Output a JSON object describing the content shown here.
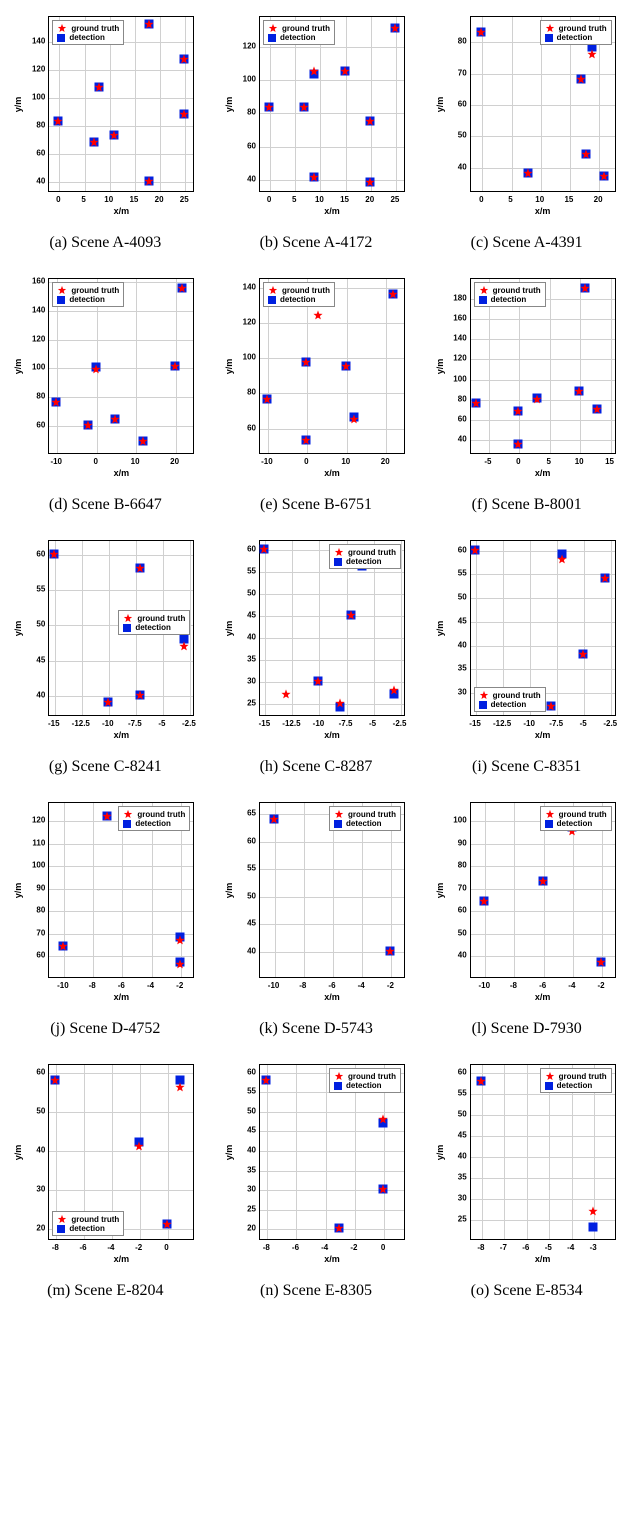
{
  "legend": {
    "ground_truth": "ground truth",
    "detection": "detection",
    "gt_color": "#ff0000",
    "det_color": "#0020e0"
  },
  "axis_labels": {
    "x": "x/m",
    "y": "y/m"
  },
  "chart_style": {
    "grid_color": "#d0d0d0",
    "border_color": "#000000",
    "tick_fontsize": 8,
    "label_fontsize": 9
  },
  "charts": [
    {
      "id": "a",
      "caption": "(a) Scene A-4093",
      "xlim": [
        -2,
        27
      ],
      "ylim": [
        32,
        158
      ],
      "xticks": [
        0,
        5,
        10,
        15,
        20,
        25
      ],
      "yticks": [
        40,
        60,
        80,
        100,
        120,
        140
      ],
      "legend_pos": "top-left",
      "gt": [
        [
          0,
          83
        ],
        [
          7,
          68
        ],
        [
          8,
          107
        ],
        [
          11,
          73
        ],
        [
          18,
          40
        ],
        [
          25,
          88
        ],
        [
          25,
          127
        ],
        [
          18,
          152
        ]
      ],
      "det": [
        [
          0,
          83
        ],
        [
          7,
          68
        ],
        [
          8,
          107
        ],
        [
          11,
          73
        ],
        [
          18,
          40
        ],
        [
          25,
          88
        ],
        [
          25,
          127
        ],
        [
          18,
          152
        ]
      ]
    },
    {
      "id": "b",
      "caption": "(b) Scene A-4172",
      "xlim": [
        -2,
        27
      ],
      "ylim": [
        32,
        138
      ],
      "xticks": [
        0,
        5,
        10,
        15,
        20,
        25
      ],
      "yticks": [
        40,
        60,
        80,
        100,
        120
      ],
      "legend_pos": "top-left",
      "gt": [
        [
          0,
          83
        ],
        [
          7,
          83
        ],
        [
          9,
          41
        ],
        [
          9,
          105
        ],
        [
          15,
          105
        ],
        [
          20,
          38
        ],
        [
          20,
          75
        ],
        [
          25,
          131
        ]
      ],
      "det": [
        [
          0,
          83
        ],
        [
          7,
          83
        ],
        [
          9,
          41
        ],
        [
          9,
          103
        ],
        [
          15,
          105
        ],
        [
          20,
          38
        ],
        [
          20,
          75
        ],
        [
          25,
          131
        ]
      ]
    },
    {
      "id": "c",
      "caption": "(c) Scene A-4391",
      "xlim": [
        -2,
        23
      ],
      "ylim": [
        32,
        88
      ],
      "xticks": [
        0,
        5,
        10,
        15,
        20
      ],
      "yticks": [
        40,
        50,
        60,
        70,
        80
      ],
      "legend_pos": "top-right",
      "gt": [
        [
          0,
          83
        ],
        [
          8,
          38
        ],
        [
          17,
          68
        ],
        [
          18,
          44
        ],
        [
          19,
          76
        ],
        [
          21,
          37
        ]
      ],
      "det": [
        [
          0,
          83
        ],
        [
          8,
          38
        ],
        [
          17,
          68
        ],
        [
          18,
          44
        ],
        [
          19,
          78
        ],
        [
          21,
          37
        ]
      ]
    },
    {
      "id": "d",
      "caption": "(d) Scene B-6647",
      "xlim": [
        -12,
        25
      ],
      "ylim": [
        40,
        162
      ],
      "xticks": [
        -10,
        0,
        10,
        20
      ],
      "yticks": [
        60,
        80,
        100,
        120,
        140,
        160
      ],
      "legend_pos": "top-left",
      "gt": [
        [
          -10,
          76
        ],
        [
          -2,
          60
        ],
        [
          0,
          99
        ],
        [
          5,
          64
        ],
        [
          12,
          49
        ],
        [
          20,
          101
        ],
        [
          22,
          155
        ]
      ],
      "det": [
        [
          -10,
          76
        ],
        [
          -2,
          60
        ],
        [
          0,
          100
        ],
        [
          5,
          64
        ],
        [
          12,
          49
        ],
        [
          20,
          101
        ],
        [
          22,
          155
        ]
      ]
    },
    {
      "id": "e",
      "caption": "(e) Scene B-6751",
      "xlim": [
        -12,
        25
      ],
      "ylim": [
        45,
        145
      ],
      "xticks": [
        -10,
        0,
        10,
        20
      ],
      "yticks": [
        60,
        80,
        100,
        120,
        140
      ],
      "legend_pos": "top-left",
      "gt": [
        [
          -10,
          76
        ],
        [
          0,
          53
        ],
        [
          0,
          97
        ],
        [
          3,
          124
        ],
        [
          10,
          95
        ],
        [
          12,
          65
        ],
        [
          22,
          136
        ]
      ],
      "det": [
        [
          -10,
          76
        ],
        [
          0,
          53
        ],
        [
          0,
          97
        ],
        [
          10,
          95
        ],
        [
          12,
          66
        ],
        [
          22,
          136
        ]
      ]
    },
    {
      "id": "f",
      "caption": "(f) Scene B-8001",
      "xlim": [
        -8,
        16
      ],
      "ylim": [
        25,
        200
      ],
      "xticks": [
        -5,
        0,
        5,
        10,
        15
      ],
      "yticks": [
        40,
        60,
        80,
        100,
        120,
        140,
        160,
        180
      ],
      "legend_pos": "top-left",
      "gt": [
        [
          -7,
          76
        ],
        [
          0,
          35
        ],
        [
          0,
          68
        ],
        [
          3,
          80
        ],
        [
          10,
          88
        ],
        [
          11,
          190
        ],
        [
          13,
          70
        ]
      ],
      "det": [
        [
          -7,
          76
        ],
        [
          0,
          35
        ],
        [
          0,
          68
        ],
        [
          3,
          81
        ],
        [
          10,
          88
        ],
        [
          11,
          190
        ],
        [
          13,
          70
        ]
      ]
    },
    {
      "id": "g",
      "caption": "(g) Scene C-8241",
      "xlim": [
        -15.5,
        -2
      ],
      "ylim": [
        37,
        62
      ],
      "xticks": [
        -15,
        -12.5,
        -10,
        -7.5,
        -5,
        -2.5
      ],
      "yticks": [
        40,
        45,
        50,
        55,
        60
      ],
      "legend_pos": "center-right",
      "gt": [
        [
          -15,
          60
        ],
        [
          -10,
          39
        ],
        [
          -7,
          58
        ],
        [
          -7,
          40
        ],
        [
          -3,
          47
        ]
      ],
      "det": [
        [
          -15,
          60
        ],
        [
          -10,
          39
        ],
        [
          -7,
          58
        ],
        [
          -7,
          40
        ],
        [
          -3,
          48
        ]
      ]
    },
    {
      "id": "h",
      "caption": "(h) Scene C-8287",
      "xlim": [
        -15.5,
        -2
      ],
      "ylim": [
        22,
        62
      ],
      "xticks": [
        -15,
        -12.5,
        -10,
        -7.5,
        -5,
        -2.5
      ],
      "yticks": [
        25,
        30,
        35,
        40,
        45,
        50,
        55,
        60
      ],
      "legend_pos": "top-right",
      "gt": [
        [
          -15,
          60
        ],
        [
          -13,
          27
        ],
        [
          -10,
          30
        ],
        [
          -8,
          25
        ],
        [
          -7,
          45
        ],
        [
          -6,
          57
        ],
        [
          -3,
          28
        ]
      ],
      "det": [
        [
          -15,
          60
        ],
        [
          -10,
          30
        ],
        [
          -8,
          24
        ],
        [
          -7,
          45
        ],
        [
          -6,
          56
        ],
        [
          -3,
          27
        ]
      ]
    },
    {
      "id": "i",
      "caption": "(i) Scene C-8351",
      "xlim": [
        -15.5,
        -2
      ],
      "ylim": [
        25,
        62
      ],
      "xticks": [
        -15,
        -12.5,
        -10,
        -7.5,
        -5,
        -2.5
      ],
      "yticks": [
        30,
        35,
        40,
        45,
        50,
        55,
        60
      ],
      "legend_pos": "bottom-left",
      "gt": [
        [
          -15,
          60
        ],
        [
          -8,
          27
        ],
        [
          -7,
          58
        ],
        [
          -5,
          38
        ],
        [
          -3,
          54
        ]
      ],
      "det": [
        [
          -15,
          60
        ],
        [
          -8,
          27
        ],
        [
          -7,
          59
        ],
        [
          -5,
          38
        ],
        [
          -3,
          54
        ]
      ]
    },
    {
      "id": "j",
      "caption": "(j) Scene D-4752",
      "xlim": [
        -11,
        -1
      ],
      "ylim": [
        50,
        128
      ],
      "xticks": [
        -10,
        -8,
        -6,
        -4,
        -2
      ],
      "yticks": [
        60,
        70,
        80,
        90,
        100,
        110,
        120
      ],
      "legend_pos": "top-right",
      "gt": [
        [
          -10,
          64
        ],
        [
          -7,
          122
        ],
        [
          -2,
          67
        ],
        [
          -2,
          56
        ]
      ],
      "det": [
        [
          -10,
          64
        ],
        [
          -7,
          122
        ],
        [
          -2,
          68
        ],
        [
          -2,
          57
        ]
      ]
    },
    {
      "id": "k",
      "caption": "(k) Scene D-5743",
      "xlim": [
        -11,
        -1
      ],
      "ylim": [
        35,
        67
      ],
      "xticks": [
        -10,
        -8,
        -6,
        -4,
        -2
      ],
      "yticks": [
        40,
        45,
        50,
        55,
        60,
        65
      ],
      "legend_pos": "top-right",
      "gt": [
        [
          -10,
          64
        ],
        [
          -2,
          40
        ]
      ],
      "det": [
        [
          -10,
          64
        ],
        [
          -2,
          40
        ]
      ]
    },
    {
      "id": "l",
      "caption": "(l) Scene D-7930",
      "xlim": [
        -11,
        -1
      ],
      "ylim": [
        30,
        108
      ],
      "xticks": [
        -10,
        -8,
        -6,
        -4,
        -2
      ],
      "yticks": [
        40,
        50,
        60,
        70,
        80,
        90,
        100
      ],
      "legend_pos": "top-right",
      "gt": [
        [
          -10,
          64
        ],
        [
          -6,
          73
        ],
        [
          -4,
          95
        ],
        [
          -3,
          100
        ],
        [
          -2,
          37
        ]
      ],
      "det": [
        [
          -10,
          64
        ],
        [
          -6,
          73
        ],
        [
          -4,
          97
        ],
        [
          -3,
          102
        ],
        [
          -2,
          37
        ]
      ]
    },
    {
      "id": "m",
      "caption": "(m) Scene E-8204",
      "xlim": [
        -8.5,
        2
      ],
      "ylim": [
        17,
        62
      ],
      "xticks": [
        -8,
        -6,
        -4,
        -2,
        0
      ],
      "yticks": [
        20,
        30,
        40,
        50,
        60
      ],
      "legend_pos": "bottom-left",
      "gt": [
        [
          -8,
          58
        ],
        [
          -2,
          41
        ],
        [
          0,
          21
        ],
        [
          1,
          56
        ]
      ],
      "det": [
        [
          -8,
          58
        ],
        [
          -2,
          42
        ],
        [
          0,
          21
        ],
        [
          1,
          58
        ]
      ]
    },
    {
      "id": "n",
      "caption": "(n) Scene E-8305",
      "xlim": [
        -8.5,
        1.5
      ],
      "ylim": [
        17,
        62
      ],
      "xticks": [
        -8,
        -6,
        -4,
        -2,
        0
      ],
      "yticks": [
        20,
        25,
        30,
        35,
        40,
        45,
        50,
        55,
        60
      ],
      "legend_pos": "top-right",
      "gt": [
        [
          -8,
          58
        ],
        [
          -3,
          20
        ],
        [
          0,
          48
        ],
        [
          0,
          30
        ]
      ],
      "det": [
        [
          -8,
          58
        ],
        [
          -3,
          20
        ],
        [
          0,
          47
        ],
        [
          0,
          30
        ]
      ]
    },
    {
      "id": "o",
      "caption": "(o) Scene E-8534",
      "xlim": [
        -8.5,
        -2
      ],
      "ylim": [
        20,
        62
      ],
      "xticks": [
        -8,
        -7,
        -6,
        -5,
        -4,
        -3
      ],
      "yticks": [
        25,
        30,
        35,
        40,
        45,
        50,
        55,
        60
      ],
      "legend_pos": "top-right",
      "gt": [
        [
          -8,
          58
        ],
        [
          -3,
          27
        ]
      ],
      "det": [
        [
          -8,
          58
        ],
        [
          -3,
          23
        ]
      ]
    }
  ]
}
